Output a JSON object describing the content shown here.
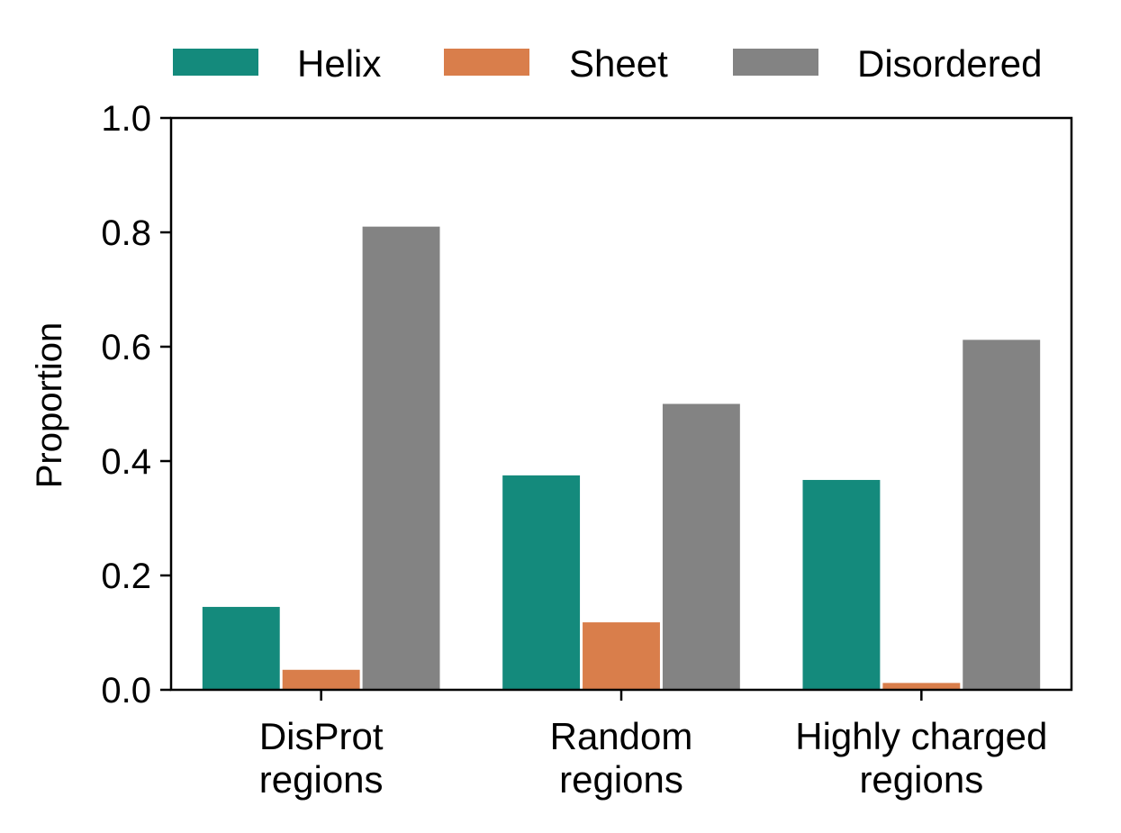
{
  "chart_data": {
    "type": "bar",
    "title": "",
    "xlabel": "",
    "ylabel": "Proportion",
    "ylim": [
      0,
      1.0
    ],
    "yticks": [
      "0.0",
      "0.2",
      "0.4",
      "0.6",
      "0.8",
      "1.0"
    ],
    "categories": [
      [
        "DisProt",
        "regions"
      ],
      [
        "Random",
        "regions"
      ],
      [
        "Highly charged",
        "regions"
      ]
    ],
    "series": [
      {
        "name": "Helix",
        "color": "#148a7c",
        "values": [
          0.145,
          0.375,
          0.367
        ]
      },
      {
        "name": "Sheet",
        "color": "#d97e4b",
        "values": [
          0.035,
          0.118,
          0.012
        ]
      },
      {
        "name": "Disordered",
        "color": "#838383",
        "values": [
          0.81,
          0.5,
          0.612
        ]
      }
    ],
    "legend_position": "top",
    "grid": false
  }
}
